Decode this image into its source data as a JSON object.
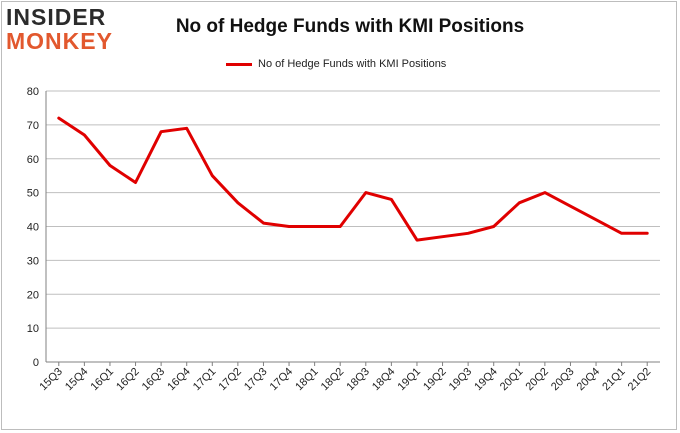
{
  "logo": {
    "line1": "INSIDER",
    "line2": "MONKEY"
  },
  "colors": {
    "line": "#e00000",
    "grid": "#bfbfbf",
    "axis": "#808080",
    "logo_accent": "#e2582e"
  },
  "chart_data": {
    "type": "line",
    "title": "No of Hedge Funds with KMI Positions",
    "legend": "top-center",
    "grid": true,
    "ylim": [
      0,
      80
    ],
    "yticks": [
      0,
      10,
      20,
      30,
      40,
      50,
      60,
      70,
      80
    ],
    "categories": [
      "15Q3",
      "15Q4",
      "16Q1",
      "16Q2",
      "16Q3",
      "16Q4",
      "17Q1",
      "17Q2",
      "17Q3",
      "17Q4",
      "18Q1",
      "18Q2",
      "18Q3",
      "18Q4",
      "19Q1",
      "19Q2",
      "19Q3",
      "19Q4",
      "20Q1",
      "20Q2",
      "20Q3",
      "20Q4",
      "21Q1",
      "21Q2"
    ],
    "series": [
      {
        "name": "No of Hedge Funds with KMI Positions",
        "values": [
          72,
          67,
          58,
          53,
          68,
          69,
          55,
          47,
          41,
          40,
          40,
          40,
          50,
          48,
          36,
          37,
          38,
          40,
          47,
          50,
          46,
          42,
          38,
          38
        ]
      }
    ]
  }
}
